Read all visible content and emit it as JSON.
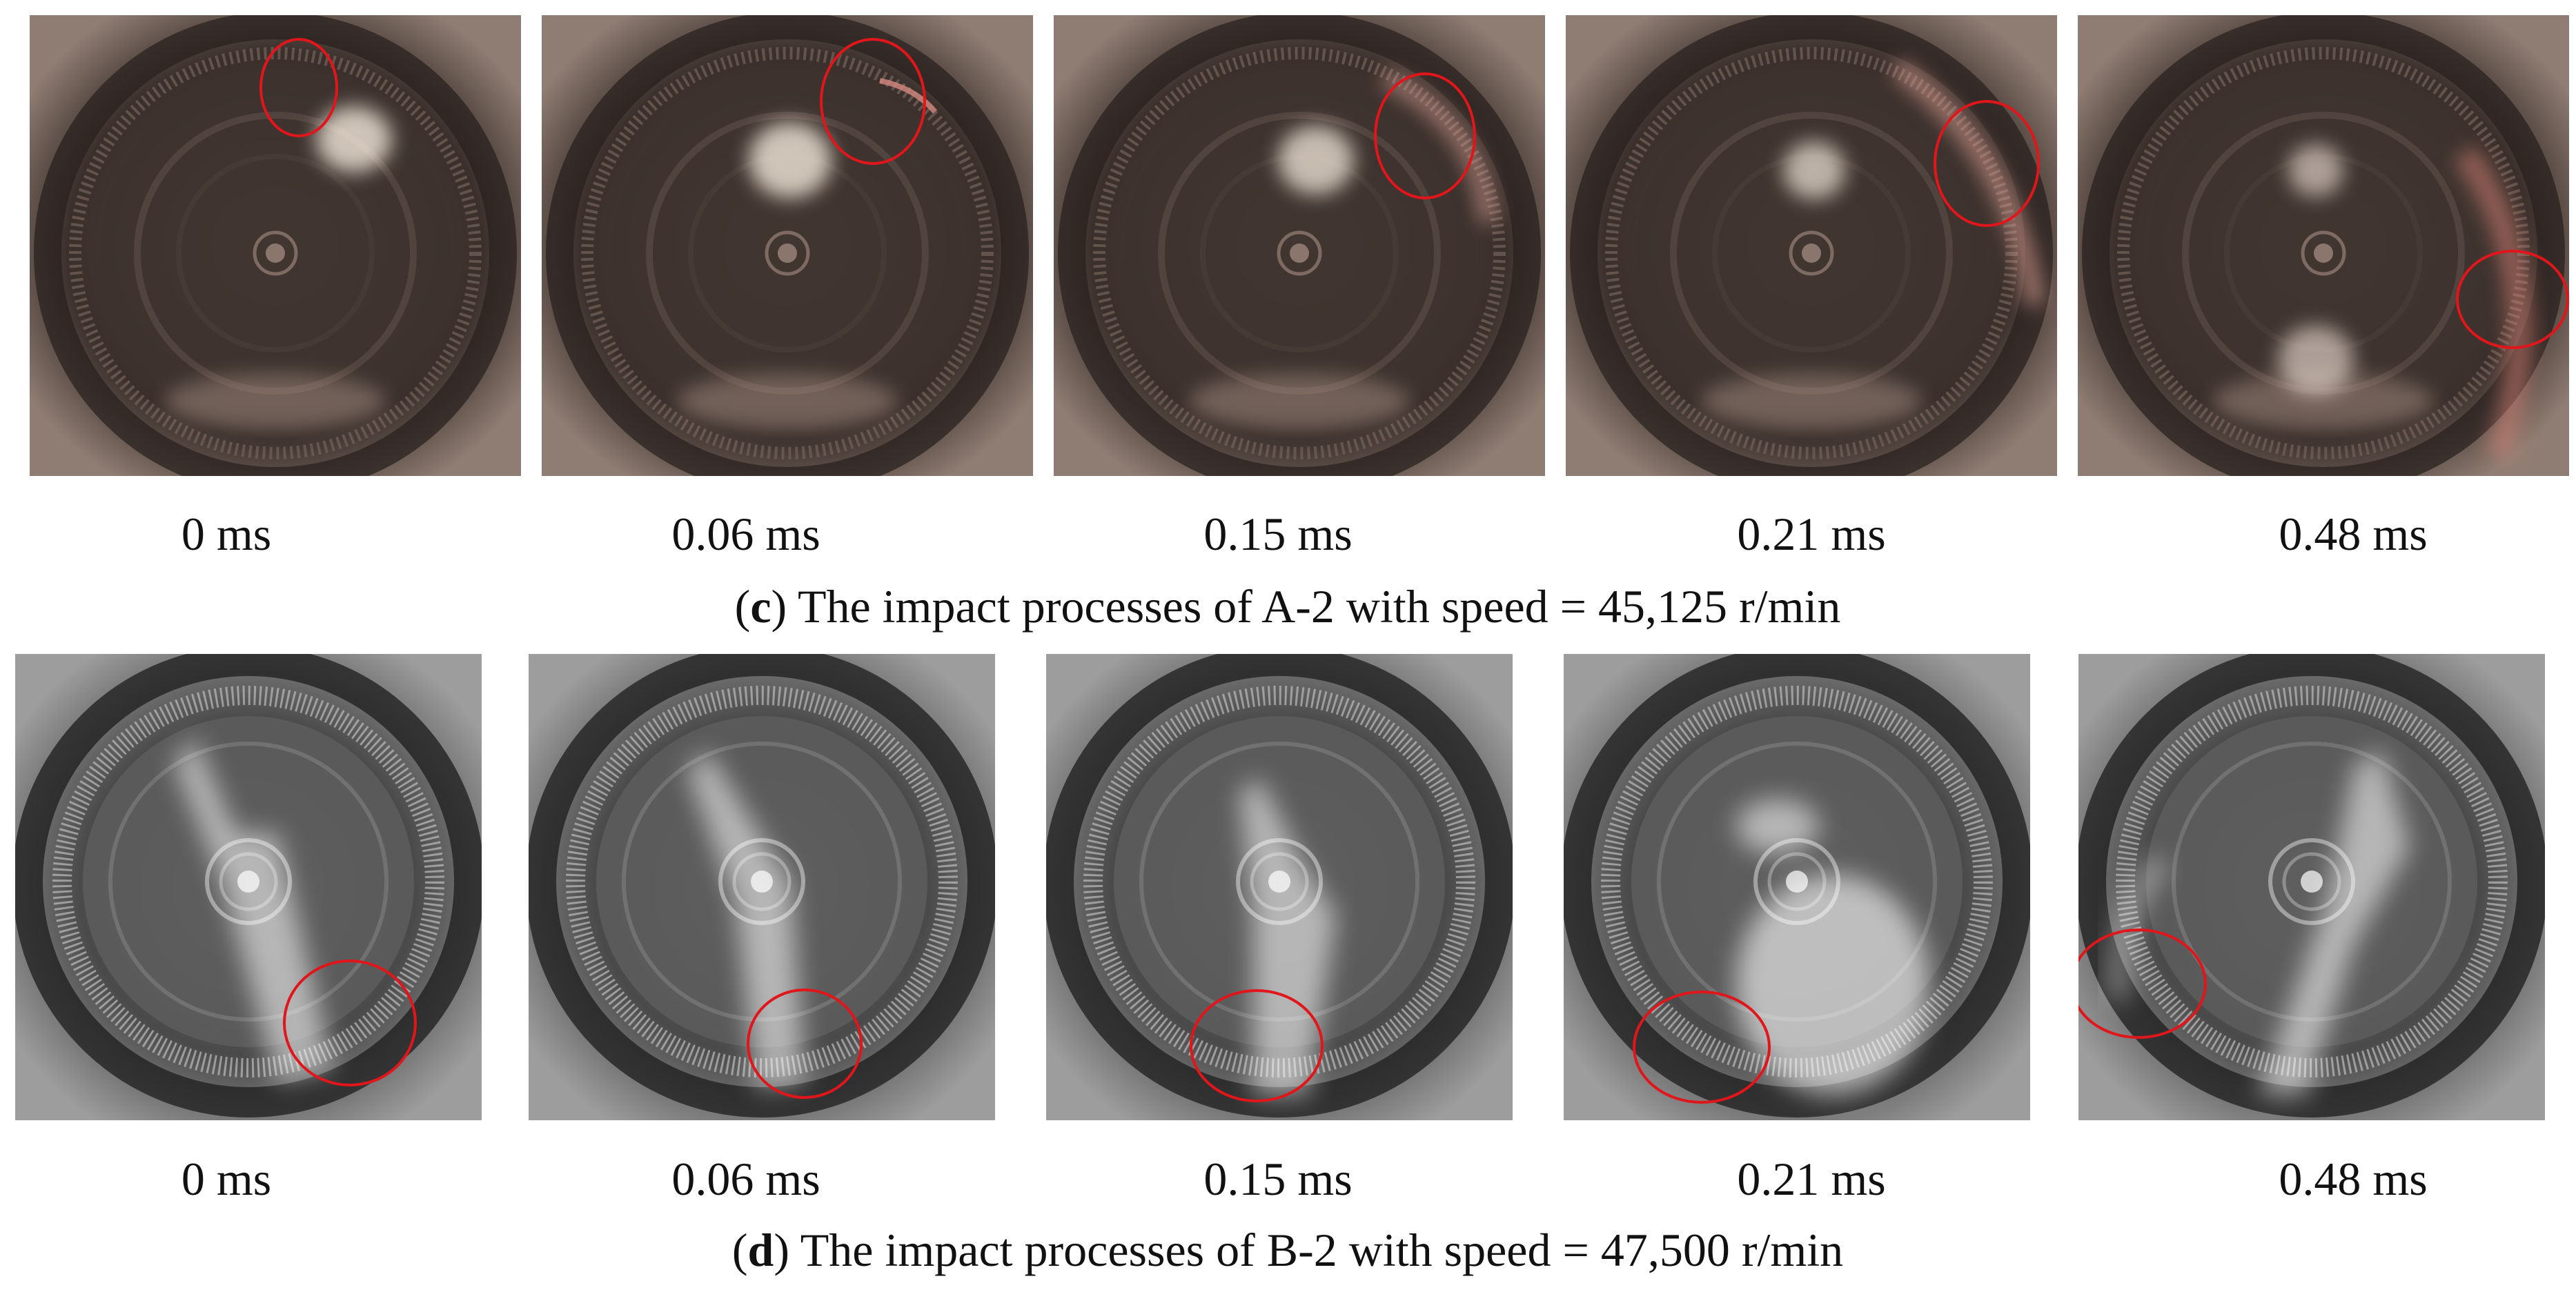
{
  "rows": [
    {
      "caption_letter": "c",
      "caption_text": "The impact processes of A-2 with speed = 45,125 r/min",
      "style": "color",
      "frames": [
        {
          "time": "0 ms"
        },
        {
          "time": "0.06 ms"
        },
        {
          "time": "0.15 ms"
        },
        {
          "time": "0.21 ms"
        },
        {
          "time": "0.48 ms"
        }
      ]
    },
    {
      "caption_letter": "d",
      "caption_text": "The impact processes of B-2 with speed = 47,500 r/min",
      "style": "grayscale",
      "frames": [
        {
          "time": "0 ms"
        },
        {
          "time": "0.06 ms"
        },
        {
          "time": "0.15 ms"
        },
        {
          "time": "0.21 ms"
        },
        {
          "time": "0.48 ms"
        }
      ]
    }
  ],
  "colors": {
    "marker": "#e0161b",
    "color_frame_dark": "#2a221f",
    "color_frame_light": "#8f7d73",
    "gray_frame_dark": "#1c1c1c",
    "gray_frame_light": "#9d9d9d"
  }
}
